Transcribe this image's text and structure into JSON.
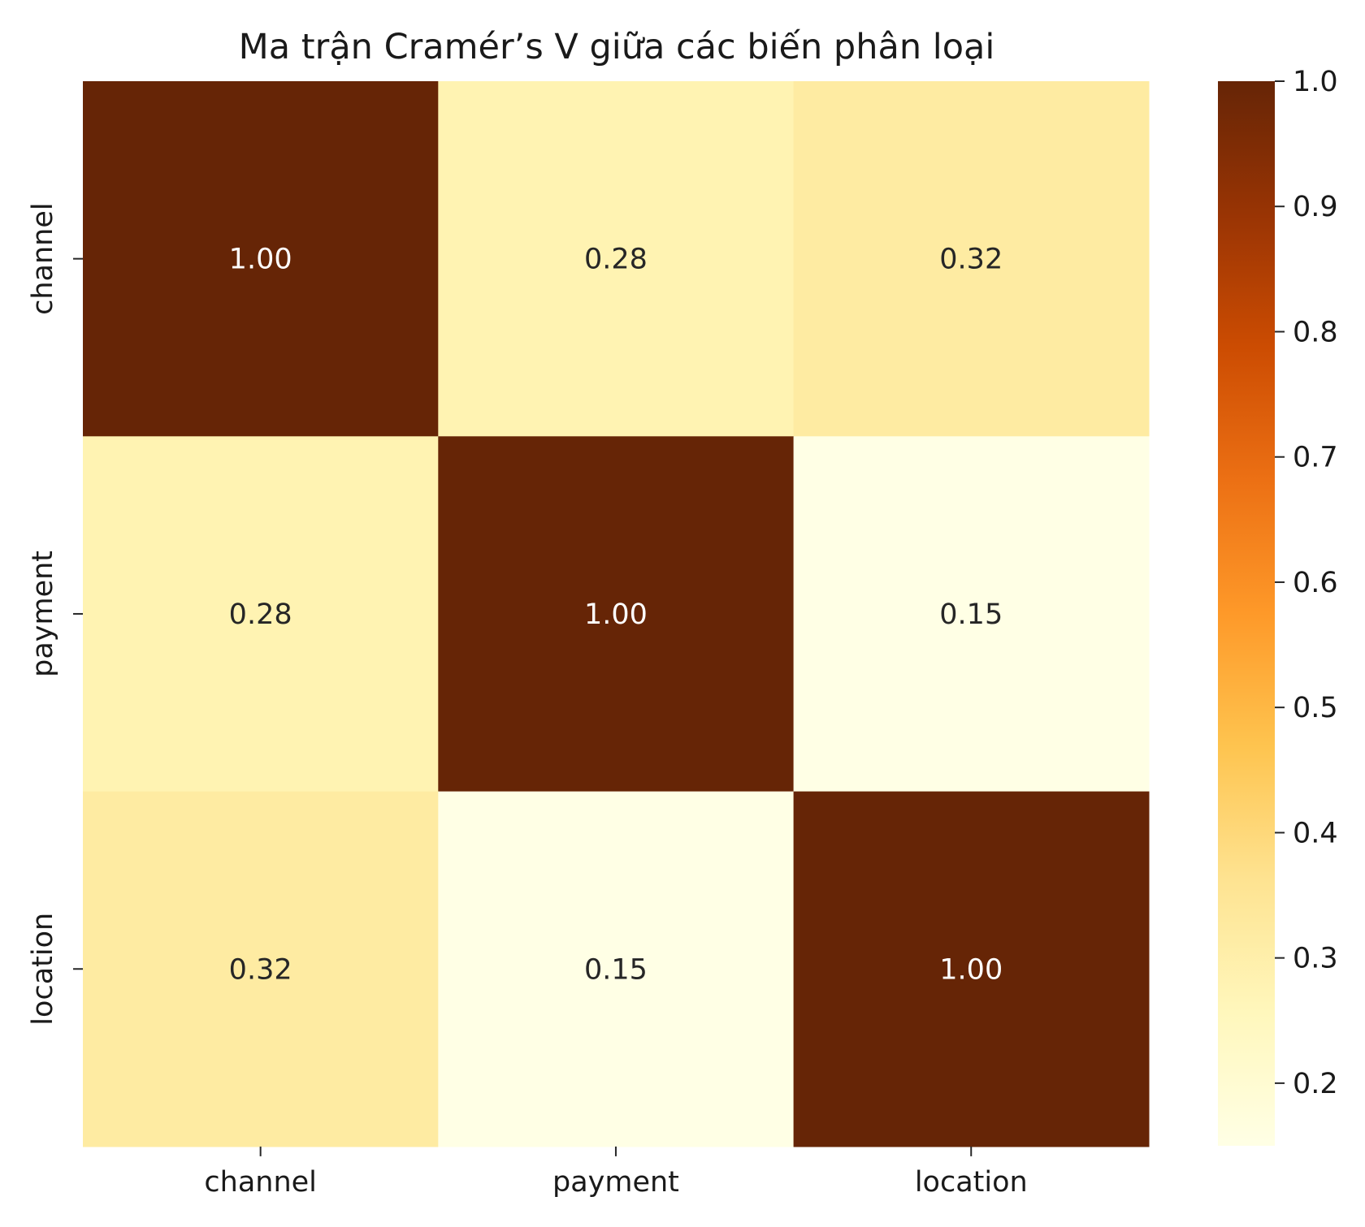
{
  "chart_data": {
    "type": "heatmap",
    "title": "Ma trận Cramér’s V giữa các biến phân loại",
    "x_labels": [
      "channel",
      "payment",
      "location"
    ],
    "y_labels": [
      "channel",
      "payment",
      "location"
    ],
    "values": [
      [
        1.0,
        0.28,
        0.32
      ],
      [
        0.28,
        1.0,
        0.15
      ],
      [
        0.32,
        0.15,
        1.0
      ]
    ],
    "value_format": "2 decimals",
    "colormap": "YlOrBr",
    "colorbar": {
      "vmin": 0.15,
      "vmax": 1.0,
      "ticks": [
        "0.2",
        "0.3",
        "0.4",
        "0.5",
        "0.6",
        "0.7",
        "0.8",
        "0.9",
        "1.0"
      ],
      "position": "right"
    },
    "grid": false,
    "colors": {
      "dark_text": "#262626",
      "light_text": "#ffffff",
      "cmap_stops": [
        "#ffffe5",
        "#fff7bc",
        "#fee391",
        "#fec44f",
        "#fe9929",
        "#ec7014",
        "#cc4c02",
        "#993404",
        "#662506"
      ]
    }
  }
}
